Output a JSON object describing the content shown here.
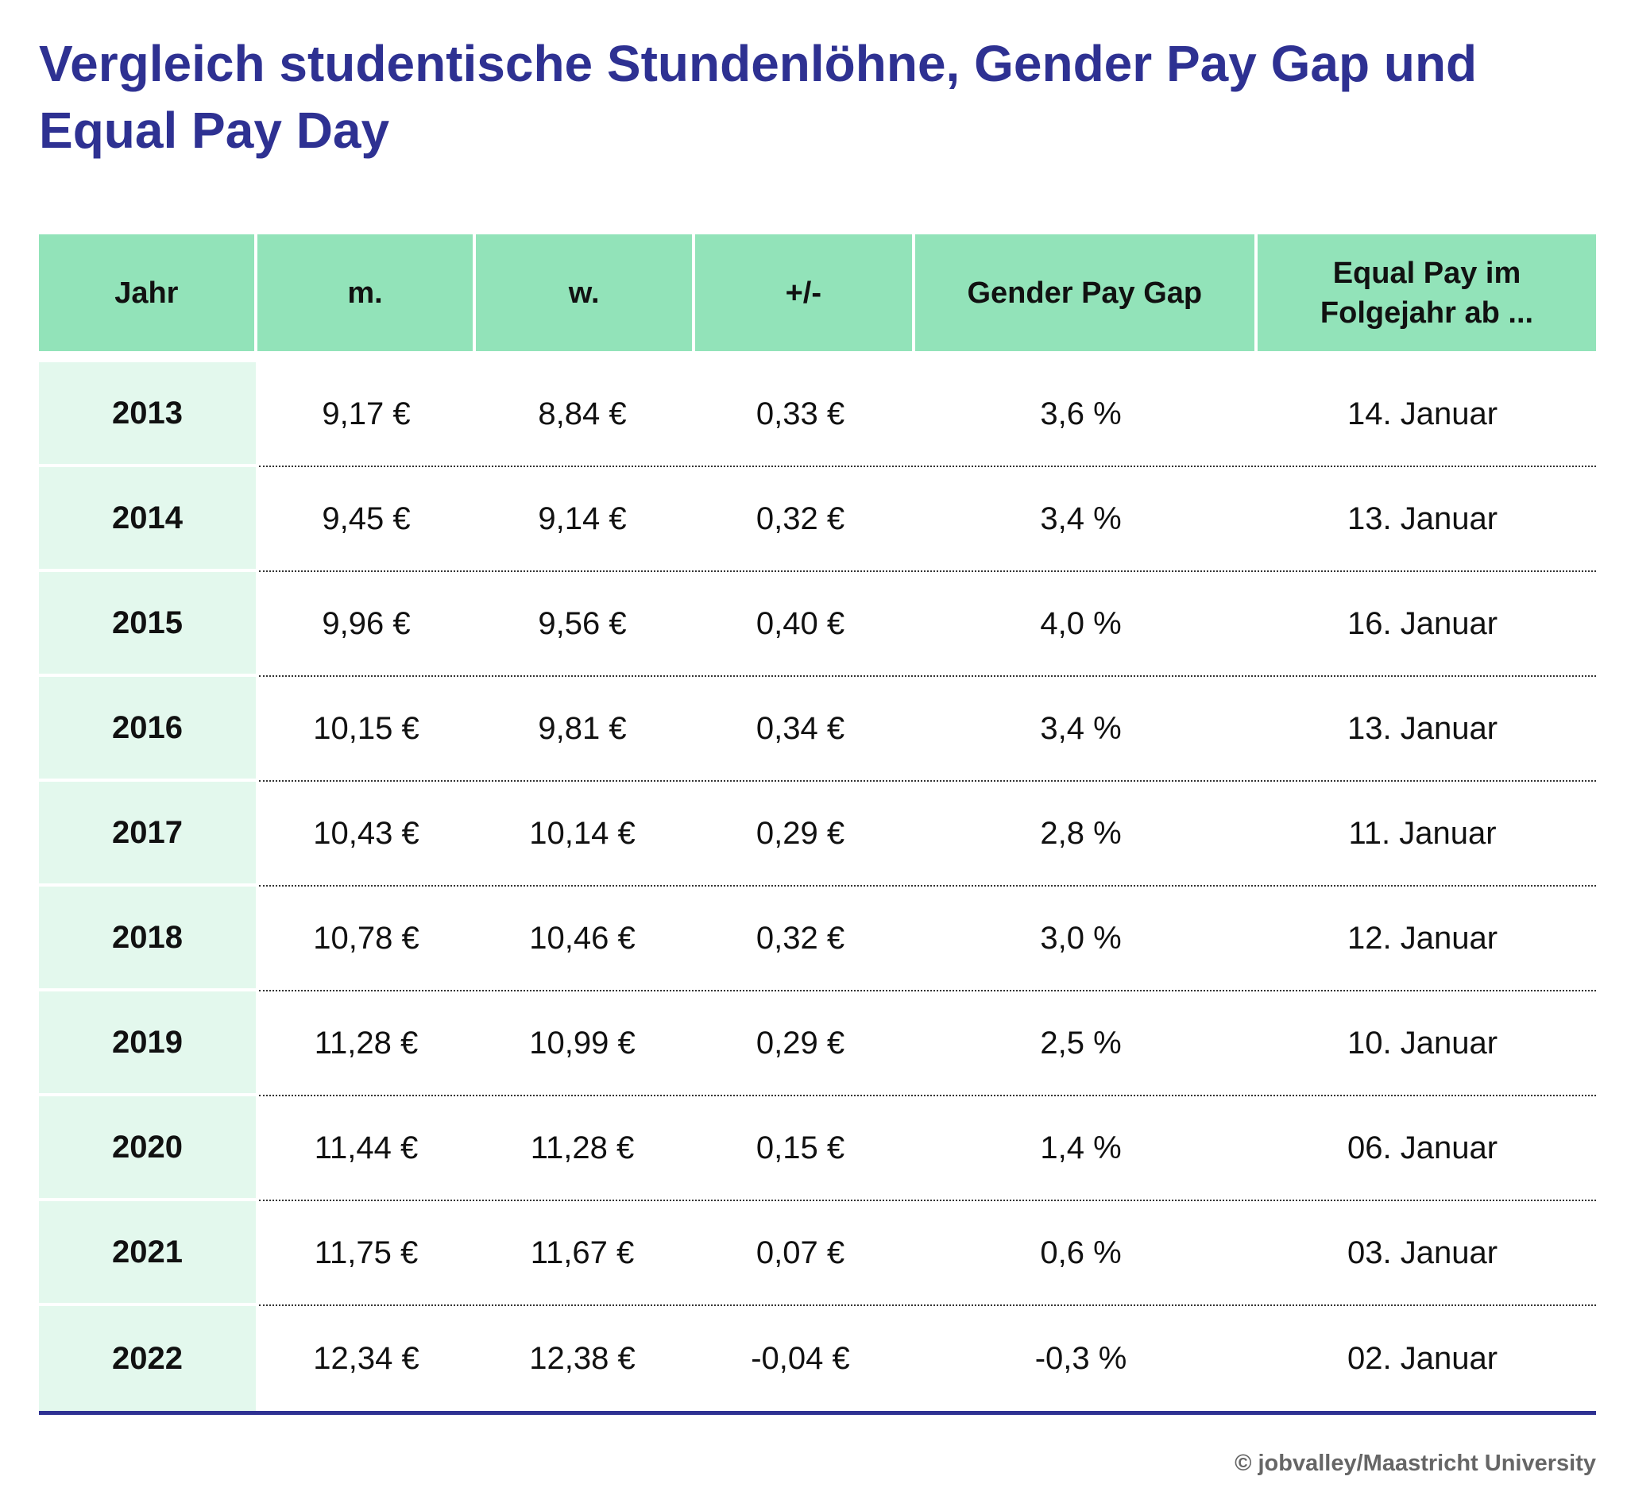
{
  "title": "Vergleich studentische Stundenlöhne, Gender Pay Gap und Equal Pay Day",
  "colors": {
    "title": "#2e3192",
    "header_bg": "#92e3b9",
    "year_bg": "#e3f8ed",
    "rule": "#2e3192"
  },
  "table": {
    "headers": [
      "Jahr",
      "m.",
      "w.",
      "+/-",
      "Gender Pay Gap",
      "Equal Pay im Folgejahr ab ..."
    ],
    "rows": [
      [
        "2013",
        "9,17 €",
        "8,84 €",
        "0,33 €",
        "3,6 %",
        "14. Januar"
      ],
      [
        "2014",
        "9,45 €",
        "9,14 €",
        "0,32 €",
        "3,4 %",
        "13. Januar"
      ],
      [
        "2015",
        "9,96 €",
        "9,56 €",
        "0,40 €",
        "4,0 %",
        "16. Januar"
      ],
      [
        "2016",
        "10,15 €",
        "9,81 €",
        "0,34 €",
        "3,4 %",
        "13. Januar"
      ],
      [
        "2017",
        "10,43 €",
        "10,14 €",
        "0,29 €",
        "2,8 %",
        "11. Januar"
      ],
      [
        "2018",
        "10,78 €",
        "10,46 €",
        "0,32 €",
        "3,0 %",
        "12. Januar"
      ],
      [
        "2019",
        "11,28 €",
        "10,99 €",
        "0,29 €",
        "2,5 %",
        "10. Januar"
      ],
      [
        "2020",
        "11,44 €",
        "11,28 €",
        "0,15 €",
        "1,4 %",
        "06. Januar"
      ],
      [
        "2021",
        "11,75 €",
        "11,67 €",
        "0,07 €",
        "0,6 %",
        "03. Januar"
      ],
      [
        "2022",
        "12,34 €",
        "12,38 €",
        "-0,04 €",
        "-0,3 %",
        "02. Januar"
      ]
    ]
  },
  "footer": "© jobvalley/Maastricht University"
}
